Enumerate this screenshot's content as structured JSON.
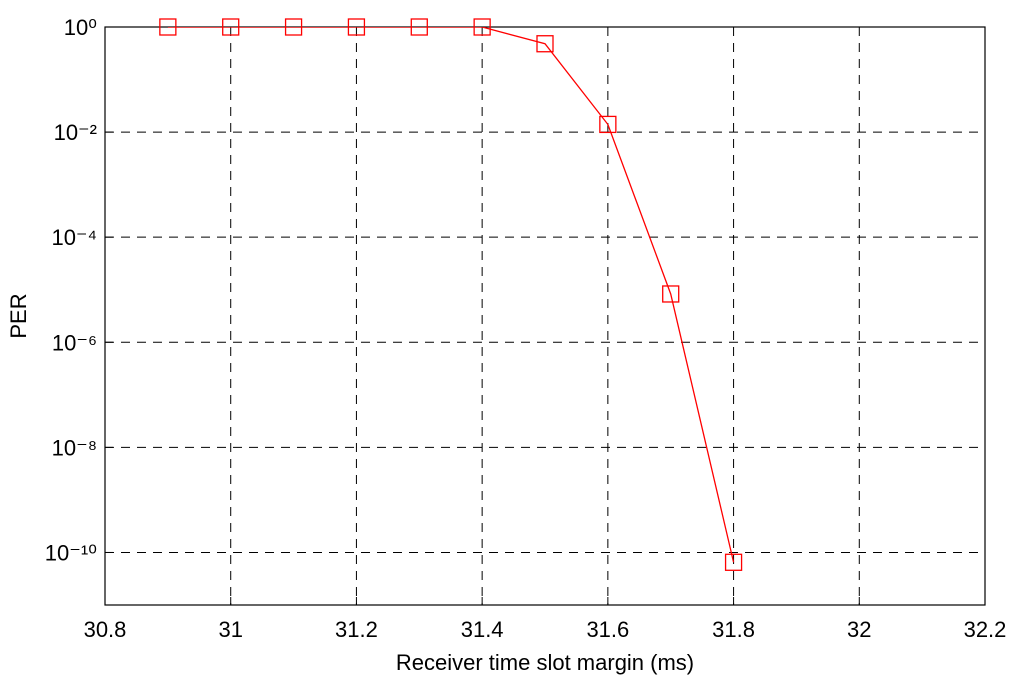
{
  "chart_data": {
    "type": "line",
    "xlabel": "Receiver time slot margin (ms)",
    "ylabel": "PER",
    "xlim": [
      30.8,
      32.2
    ],
    "xticks": [
      30.8,
      31,
      31.2,
      31.4,
      31.6,
      31.8,
      32,
      32.2
    ],
    "ylim": [
      1e-11,
      1
    ],
    "ylog": true,
    "yticks": [
      {
        "value": 1,
        "label": "10⁰"
      },
      {
        "value": 0.01,
        "label": "10⁻²"
      },
      {
        "value": 0.0001,
        "label": "10⁻⁴"
      },
      {
        "value": 1e-06,
        "label": "10⁻⁶"
      },
      {
        "value": 1e-08,
        "label": "10⁻⁸"
      },
      {
        "value": 1e-10,
        "label": "10⁻¹⁰"
      }
    ],
    "grid": true,
    "series": [
      {
        "color": "#ff0000",
        "x": [
          30.9,
          31,
          31.1,
          31.2,
          31.3,
          31.4,
          31.5,
          31.6,
          31.7,
          31.8
        ],
        "values": [
          1,
          1,
          1,
          1,
          1,
          1,
          0.48,
          0.014,
          8.3e-06,
          6.5e-11
        ]
      }
    ]
  }
}
